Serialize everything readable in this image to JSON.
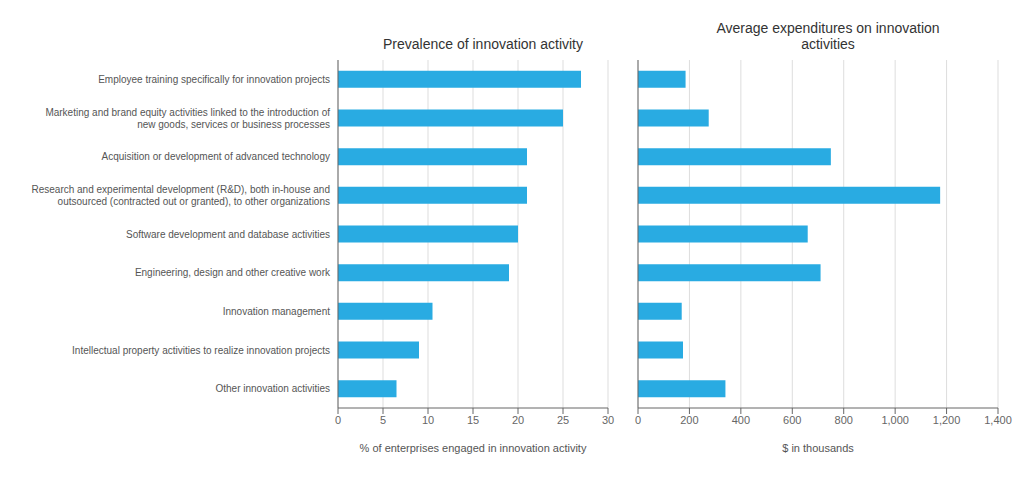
{
  "chart_data": [
    {
      "type": "bar",
      "orientation": "horizontal",
      "title": "Prevalence of innovation activity",
      "x_label": "% of enterprises engaged in innovation activity",
      "categories": [
        "Employee training specifically for innovation projects",
        "Marketing and brand equity activities linked to the introduction of\nnew goods, services or business processes",
        "Acquisition or development of advanced technology",
        "Research and experimental development (R&D), both in-house and\noutsourced (contracted out or granted), to other organizations",
        "Software development and database activities",
        "Engineering, design and other creative work",
        "Innovation management",
        "Intellectual property activities to realize innovation projects",
        "Other innovation activities"
      ],
      "values": [
        27,
        25,
        21,
        21,
        20,
        19,
        10.5,
        9,
        6.5
      ],
      "color": "#29ABE2",
      "xlim": [
        0,
        30
      ],
      "xticks": [
        0,
        5,
        10,
        15,
        20,
        25,
        30
      ],
      "grid": true
    },
    {
      "type": "bar",
      "orientation": "horizontal",
      "title": "Average expenditures on innovation\nactivities",
      "x_label": "$ in thousands",
      "categories": [
        "Employee training specifically for innovation projects",
        "Marketing and brand equity activities linked to the introduction of\nnew goods, services or business processes",
        "Acquisition or development of advanced technology",
        "Research and experimental development (R&D), both in-house and\noutsourced (contracted out or granted), to other organizations",
        "Software development and database activities",
        "Engineering, design and other creative work",
        "Innovation management",
        "Intellectual property activities to realize innovation projects",
        "Other innovation activities"
      ],
      "values": [
        185,
        275,
        750,
        1175,
        660,
        710,
        170,
        175,
        340
      ],
      "color": "#29ABE2",
      "xlim": [
        0,
        1400
      ],
      "xticks": [
        0,
        200,
        400,
        600,
        800,
        {
          "value": 1000,
          "label": "1,000"
        },
        {
          "value": 1200,
          "label": "1,200"
        },
        {
          "value": 1400,
          "label": "1,400"
        }
      ],
      "grid": true,
      "tick_labels": "x"
    }
  ]
}
